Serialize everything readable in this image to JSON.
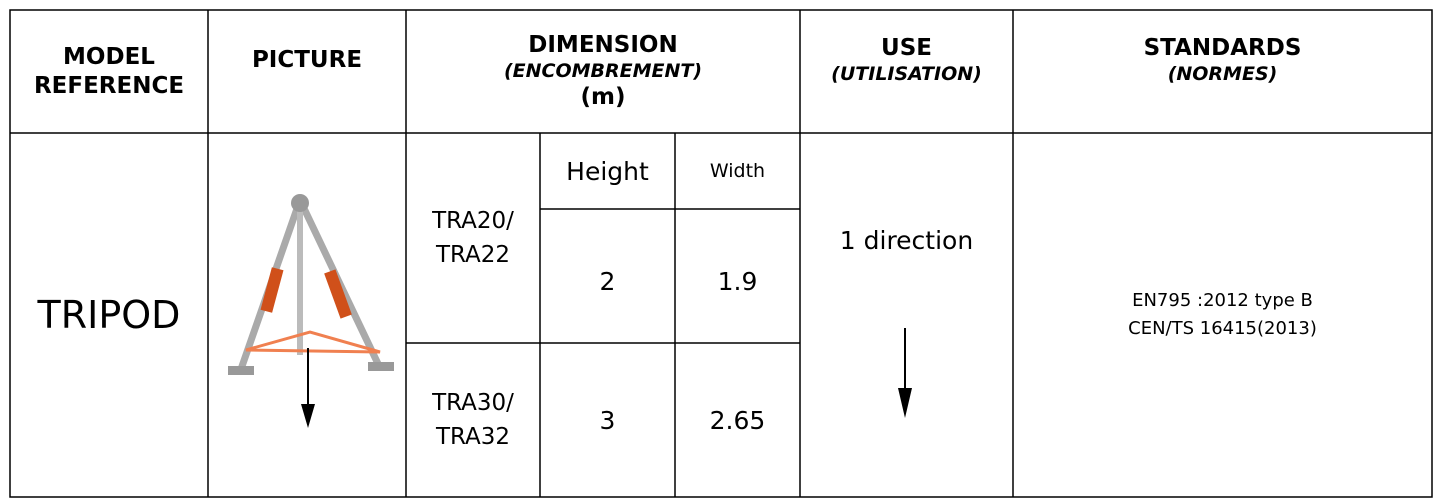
{
  "header": {
    "columns": [
      {
        "title": "MODEL REFERENCE"
      },
      {
        "title": "PICTURE"
      },
      {
        "title": "DIMENSION",
        "subtitle": "(ENCOMBREMENT)",
        "unit": "(m)"
      },
      {
        "title": "USE",
        "subtitle": "(UTILISATION)"
      },
      {
        "title": "STANDARDS",
        "subtitle": "(NORMES)"
      }
    ]
  },
  "table": {
    "model": "TRIPOD",
    "dimension_headers": [
      "Height",
      "Width"
    ],
    "variants": [
      {
        "name": [
          "TRA20/",
          "TRA22"
        ],
        "height": 2,
        "width": 1.9
      },
      {
        "name": [
          "TRA30/",
          "TRA32"
        ],
        "height": 3,
        "width": 2.65
      }
    ],
    "use": "1 direction",
    "standards": [
      "EN795 :2012 type B",
      "CEN/TS 16415(2013)"
    ]
  }
}
